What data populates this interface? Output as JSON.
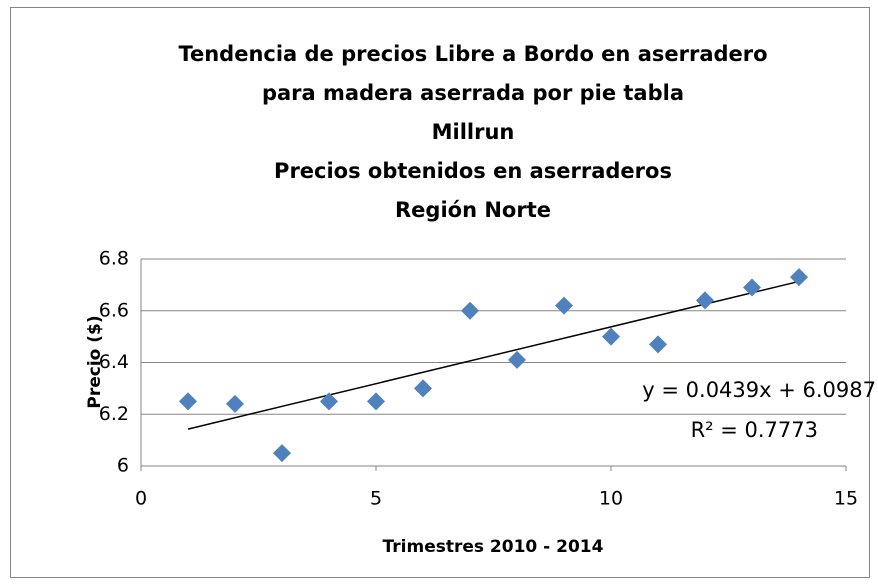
{
  "chart_data": {
    "type": "scatter",
    "title": [
      "Tendencia de precios Libre a Bordo en aserradero",
      "para madera aserrada por pie tabla",
      "Millrun",
      "Precios obtenidos en aserraderos",
      "Región Norte"
    ],
    "x_label": "Trimestres 2010 - 2014",
    "y_label": "Precio ($)",
    "x": [
      1,
      2,
      3,
      4,
      5,
      6,
      7,
      8,
      9,
      10,
      11,
      12,
      13,
      14
    ],
    "values": [
      6.25,
      6.24,
      6.05,
      6.25,
      6.25,
      6.3,
      6.6,
      6.41,
      6.62,
      6.5,
      6.47,
      6.64,
      6.69,
      6.73
    ],
    "color": "#4f81bd",
    "xlim": [
      0,
      15
    ],
    "xticks": [
      0,
      5,
      10,
      15
    ],
    "ylim": [
      6,
      6.8
    ],
    "yticks": [
      6,
      6.2,
      6.4,
      6.6,
      6.8
    ],
    "grid": true,
    "trendline": {
      "slope": 0.0439,
      "intercept": 6.0987,
      "equation": "y = 0.0439x + 6.0987",
      "r2": "R² = 0.7773"
    }
  }
}
